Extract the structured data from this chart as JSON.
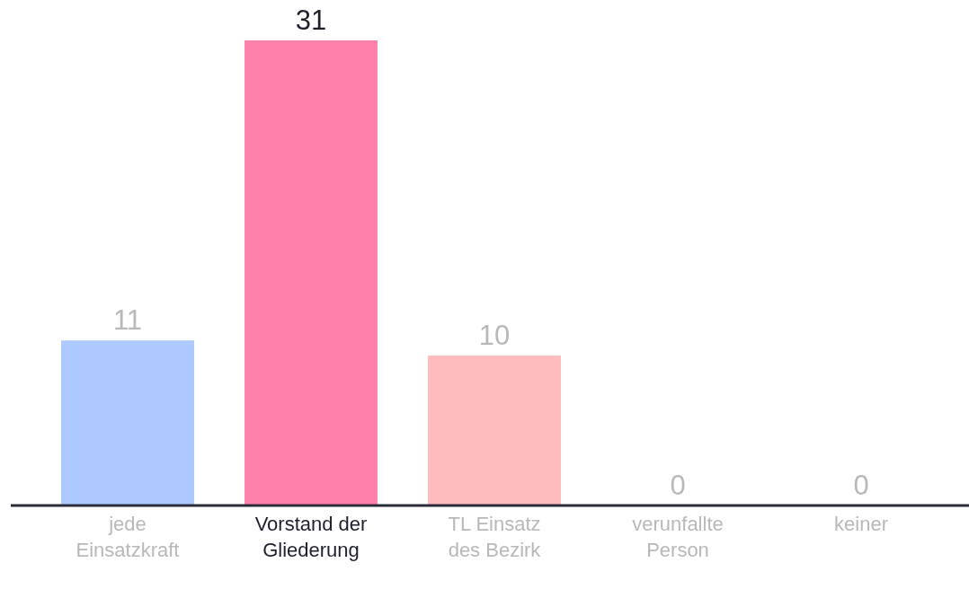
{
  "chart_data": {
    "type": "bar",
    "categories": [
      "jede Einsatzkraft",
      "Vorstand der Gliederung",
      "TL Einsatz des Bezirk",
      "verunfallte Person",
      "keiner"
    ],
    "values": [
      11,
      31,
      10,
      0,
      0
    ],
    "colors": [
      "#adc9ff",
      "#ff80aa",
      "#ffbcbf",
      "#d0d0d0",
      "#d0d0d0"
    ],
    "data_labels": true
  }
}
